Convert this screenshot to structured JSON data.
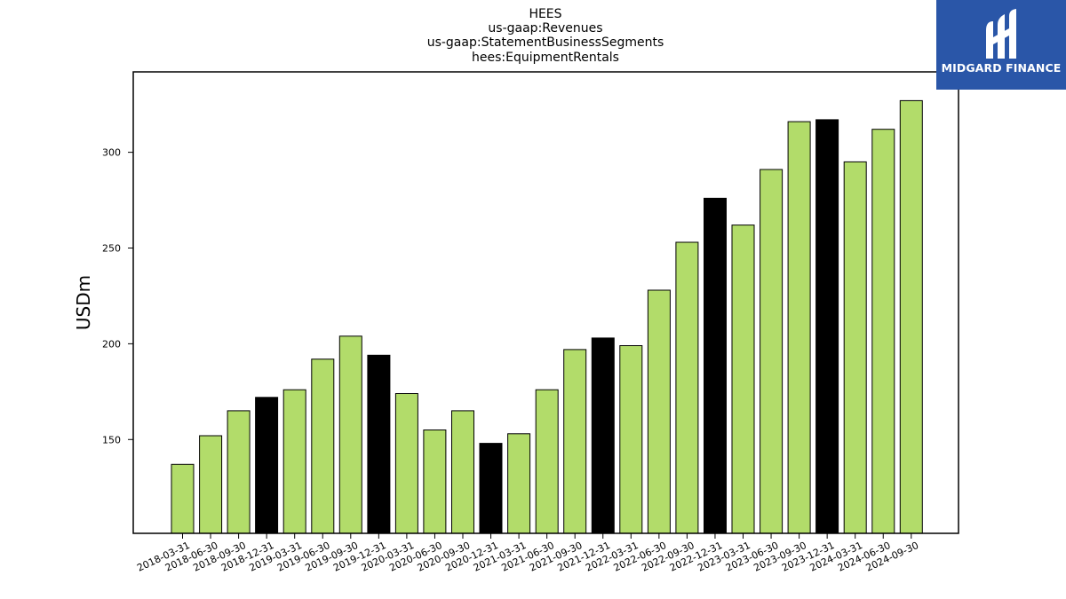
{
  "logo": {
    "text": "MIDGARD FINANCE"
  },
  "colors": {
    "bar": "#b2dc6a",
    "highlight": "#000000",
    "edge": "#000000"
  },
  "chart_data": {
    "type": "bar",
    "title_lines": [
      "HEES",
      "us-gaap:Revenues",
      "us-gaap:StatementBusinessSegments",
      "hees:EquipmentRentals"
    ],
    "xlabel": "",
    "ylabel": "USDm",
    "ylim": [
      101,
      342
    ],
    "yticks": [
      150,
      200,
      250,
      300
    ],
    "grid": false,
    "categories": [
      "2018-03-31",
      "2018-06-30",
      "2018-09-30",
      "2018-12-31",
      "2019-03-31",
      "2019-06-30",
      "2019-09-30",
      "2019-12-31",
      "2020-03-31",
      "2020-06-30",
      "2020-09-30",
      "2020-12-31",
      "2021-03-31",
      "2021-06-30",
      "2021-09-30",
      "2021-12-31",
      "2022-03-31",
      "2022-06-30",
      "2022-09-30",
      "2022-12-31",
      "2023-03-31",
      "2023-06-30",
      "2023-09-30",
      "2023-12-31",
      "2024-03-31",
      "2024-06-30",
      "2024-09-30"
    ],
    "values": [
      137,
      152,
      165,
      172,
      176,
      192,
      204,
      194,
      174,
      155,
      165,
      148,
      153,
      176,
      197,
      203,
      199,
      228,
      253,
      276,
      262,
      291,
      316,
      317,
      295,
      312,
      327
    ],
    "highlight_categories": [
      "2018-12-31",
      "2019-12-31",
      "2020-12-31",
      "2021-12-31",
      "2022-12-31",
      "2023-12-31"
    ]
  }
}
